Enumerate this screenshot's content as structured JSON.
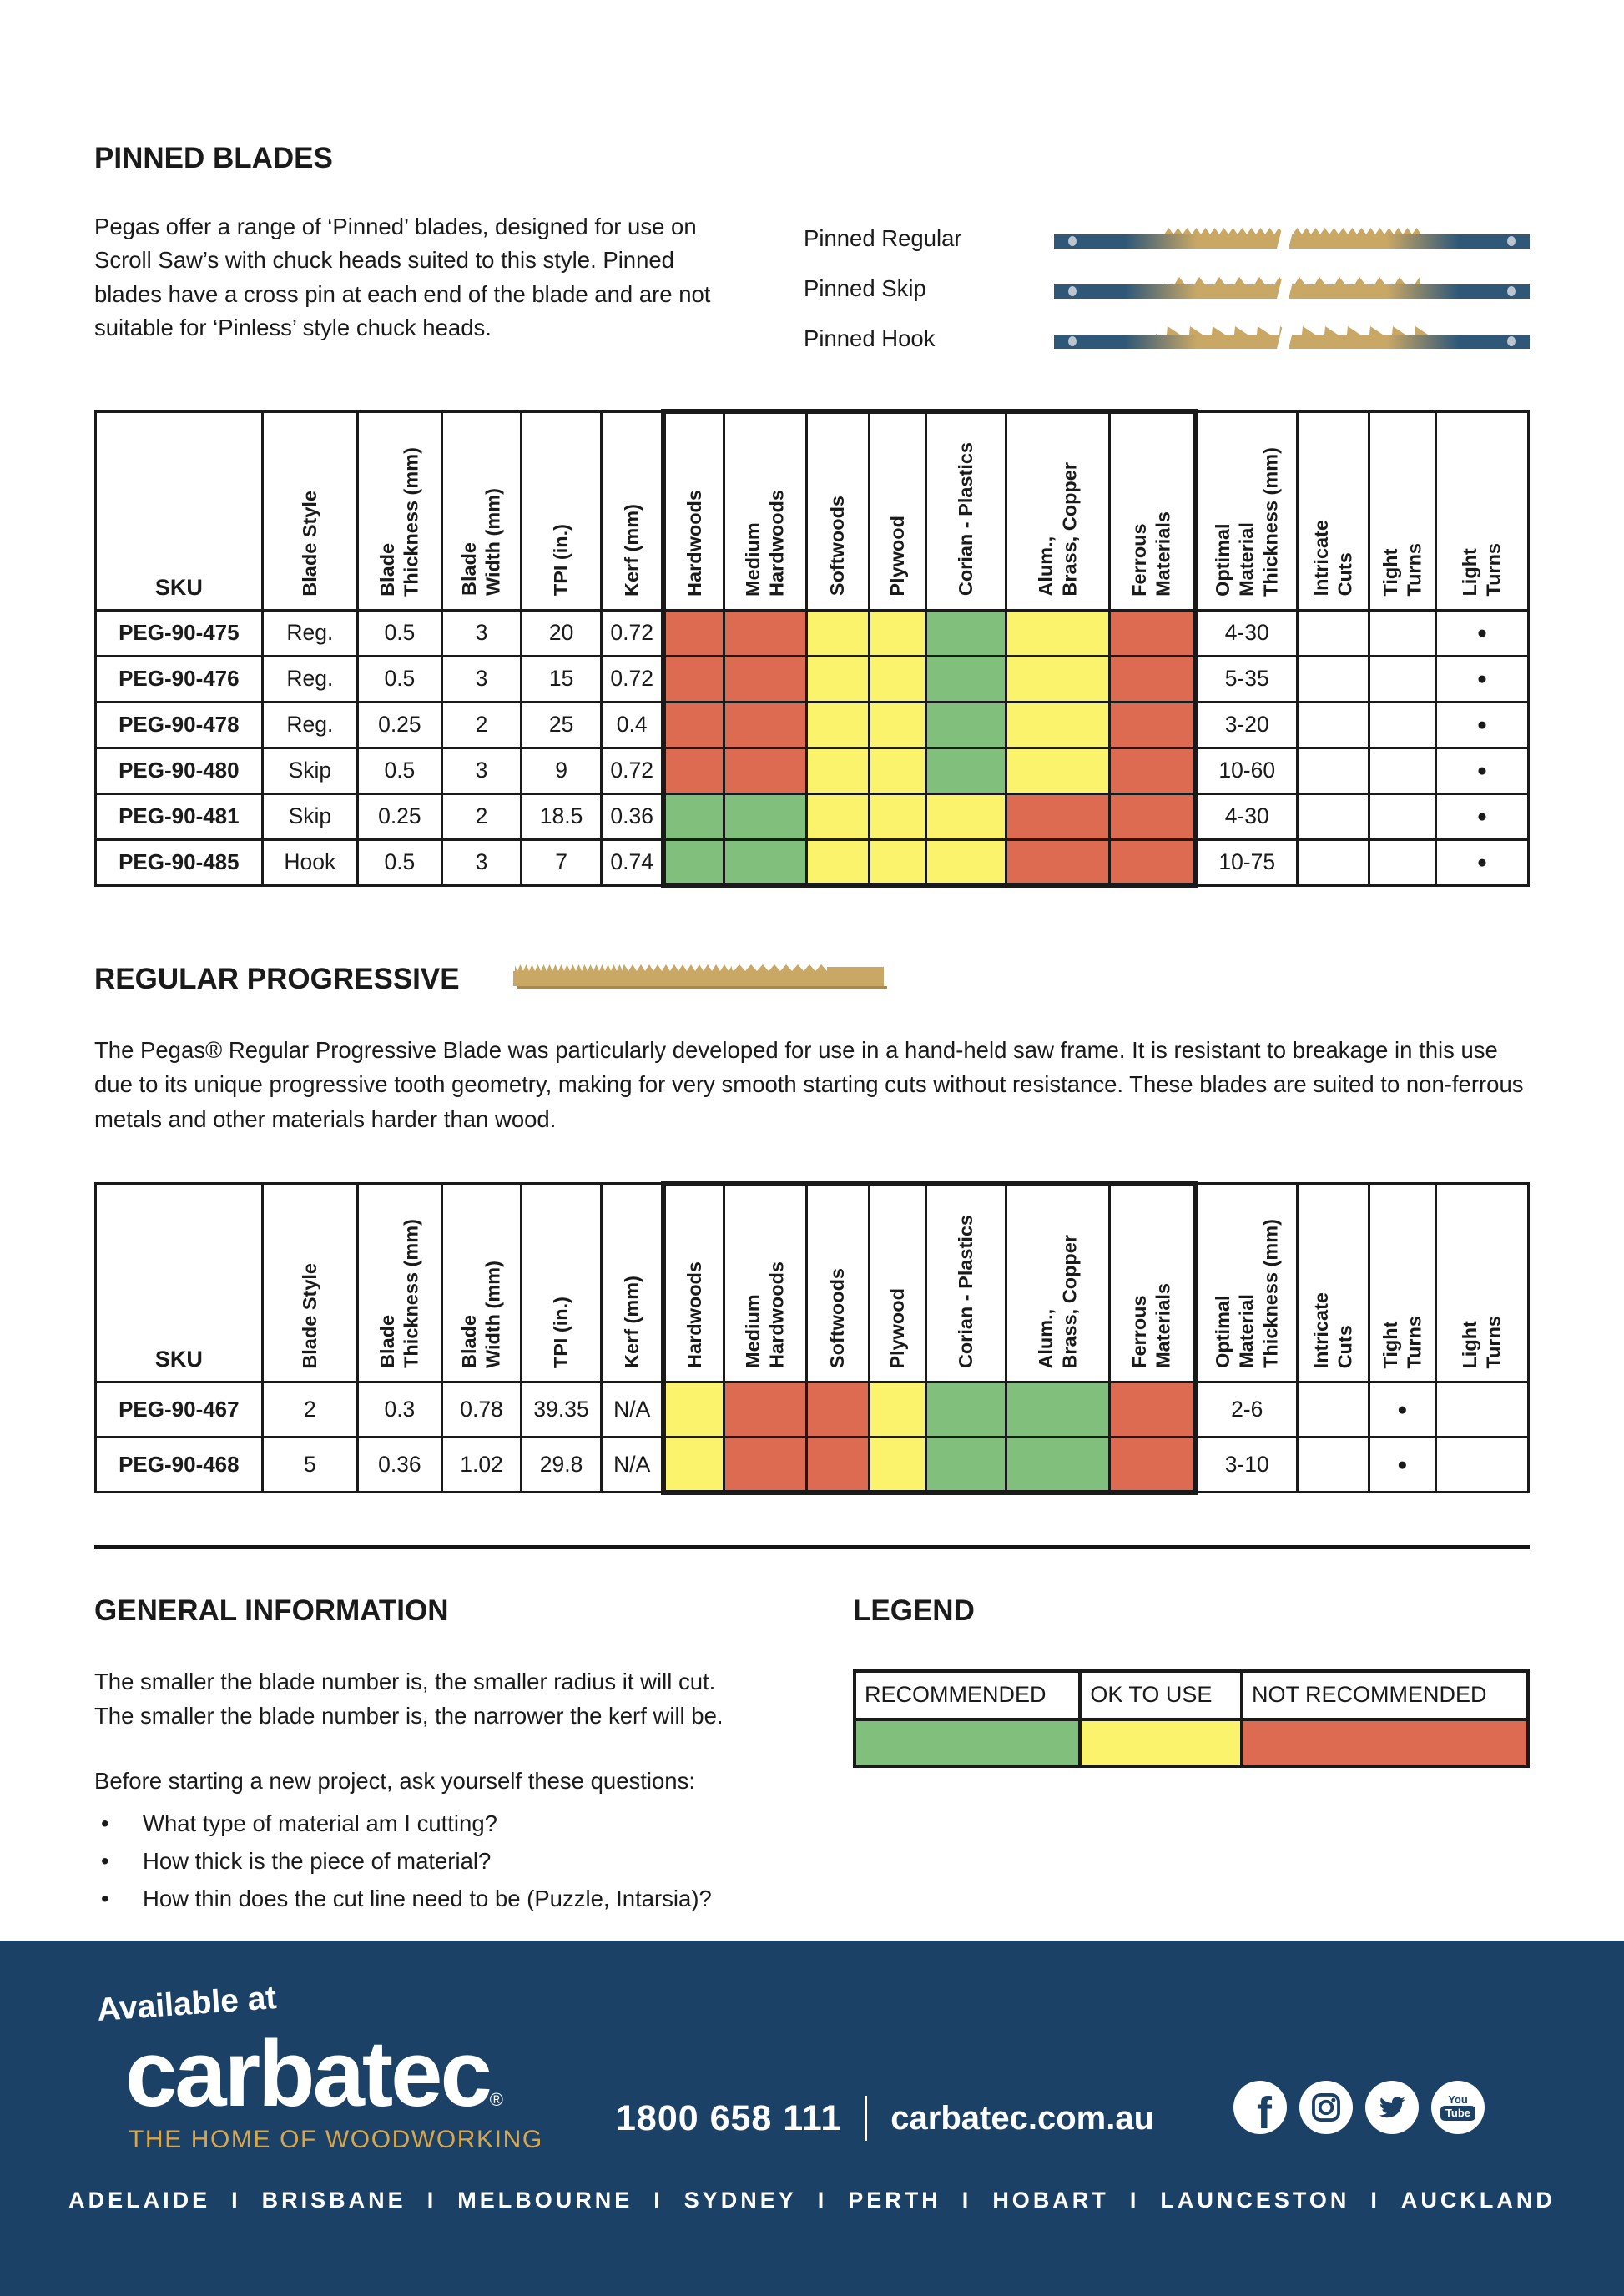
{
  "colors": {
    "table_border": "#1a1a1a",
    "footer_background": "#1b4166",
    "brand_gold": "#d9a74b",
    "blade_steel_blue": "#2f5878",
    "blade_tan": "#c9a765"
  },
  "pinned_section": {
    "title": "PINNED BLADES",
    "description": "Pegas offer a range of ‘Pinned’ blades, designed for use on Scroll Saw’s with chuck heads suited to this style. Pinned blades have a cross pin at each end of the blade and are not suitable for ‘Pinless’ style chuck heads.",
    "blade_types": [
      {
        "label": "Pinned Regular"
      },
      {
        "label": "Pinned Skip"
      },
      {
        "label": "Pinned Hook"
      }
    ]
  },
  "table": {
    "sku_label": "SKU",
    "columns": [
      "Blade Style",
      "Blade\nThickness (mm)",
      "Blade\nWidth (mm)",
      "TPI (in.)",
      "Kerf (mm)",
      "Hardwoods",
      "Medium\nHardwoods",
      "Softwoods",
      "Plywood",
      "Corian - Plastics",
      "Alum.,\nBrass, Copper",
      "Ferrous\nMaterials",
      "Optimal\nMaterial\nThickness (mm)",
      "Intricate\nCuts",
      "Tight\nTurns",
      "Light\nTurns"
    ]
  },
  "pinned_table": {
    "rows": [
      {
        "sku": "PEG-90-475",
        "blade_style": "Reg.",
        "thickness_mm": "0.5",
        "width_mm": "3",
        "tpi": "20",
        "kerf_mm": "0.72",
        "ratings": [
          "N",
          "N",
          "O",
          "O",
          "R",
          "O",
          "N"
        ],
        "optimal_thickness_mm": "4-30",
        "intricate_cuts": false,
        "tight_turns": false,
        "light_turns": true
      },
      {
        "sku": "PEG-90-476",
        "blade_style": "Reg.",
        "thickness_mm": "0.5",
        "width_mm": "3",
        "tpi": "15",
        "kerf_mm": "0.72",
        "ratings": [
          "N",
          "N",
          "O",
          "O",
          "R",
          "O",
          "N"
        ],
        "optimal_thickness_mm": "5-35",
        "intricate_cuts": false,
        "tight_turns": false,
        "light_turns": true
      },
      {
        "sku": "PEG-90-478",
        "blade_style": "Reg.",
        "thickness_mm": "0.25",
        "width_mm": "2",
        "tpi": "25",
        "kerf_mm": "0.4",
        "ratings": [
          "N",
          "N",
          "O",
          "O",
          "R",
          "O",
          "N"
        ],
        "optimal_thickness_mm": "3-20",
        "intricate_cuts": false,
        "tight_turns": false,
        "light_turns": true
      },
      {
        "sku": "PEG-90-480",
        "blade_style": "Skip",
        "thickness_mm": "0.5",
        "width_mm": "3",
        "tpi": "9",
        "kerf_mm": "0.72",
        "ratings": [
          "N",
          "N",
          "O",
          "O",
          "R",
          "O",
          "N"
        ],
        "optimal_thickness_mm": "10-60",
        "intricate_cuts": false,
        "tight_turns": false,
        "light_turns": true
      },
      {
        "sku": "PEG-90-481",
        "blade_style": "Skip",
        "thickness_mm": "0.25",
        "width_mm": "2",
        "tpi": "18.5",
        "kerf_mm": "0.36",
        "ratings": [
          "R",
          "R",
          "O",
          "O",
          "O",
          "N",
          "N"
        ],
        "optimal_thickness_mm": "4-30",
        "intricate_cuts": false,
        "tight_turns": false,
        "light_turns": true
      },
      {
        "sku": "PEG-90-485",
        "blade_style": "Hook",
        "thickness_mm": "0.5",
        "width_mm": "3",
        "tpi": "7",
        "kerf_mm": "0.74",
        "ratings": [
          "R",
          "R",
          "O",
          "O",
          "O",
          "N",
          "N"
        ],
        "optimal_thickness_mm": "10-75",
        "intricate_cuts": false,
        "tight_turns": false,
        "light_turns": true
      }
    ]
  },
  "progressive_section": {
    "title": "REGULAR PROGRESSIVE",
    "description": "The Pegas® Regular Progressive Blade was particularly developed for use in a hand-held saw frame. It is resistant to breakage in this use due to its unique progressive tooth geometry, making for very smooth starting cuts without resistance. These blades are suited to non-ferrous metals and other materials harder than wood."
  },
  "progressive_table": {
    "rows": [
      {
        "sku": "PEG-90-467",
        "blade_style": "2",
        "thickness_mm": "0.3",
        "width_mm": "0.78",
        "tpi": "39.35",
        "kerf_mm": "N/A",
        "ratings": [
          "O",
          "N",
          "N",
          "O",
          "R",
          "R",
          "N"
        ],
        "optimal_thickness_mm": "2-6",
        "intricate_cuts": false,
        "tight_turns": true,
        "light_turns": false
      },
      {
        "sku": "PEG-90-468",
        "blade_style": "5",
        "thickness_mm": "0.36",
        "width_mm": "1.02",
        "tpi": "29.8",
        "kerf_mm": "N/A",
        "ratings": [
          "O",
          "N",
          "N",
          "O",
          "R",
          "R",
          "N"
        ],
        "optimal_thickness_mm": "3-10",
        "intricate_cuts": false,
        "tight_turns": true,
        "light_turns": false
      }
    ]
  },
  "general_information": {
    "title": "GENERAL INFORMATION",
    "lines": [
      "The smaller the blade number is, the smaller radius it will cut.",
      "The smaller the blade number is, the narrower the kerf will be."
    ],
    "questions_intro": "Before starting a new project, ask yourself these questions:",
    "questions": [
      "What type of material am I cutting?",
      "How thick is the piece of material?",
      "How thin does the cut line need to be (Puzzle, Intarsia)?"
    ]
  },
  "legend": {
    "title": "LEGEND",
    "items": [
      {
        "label": "RECOMMENDED",
        "code": "R",
        "color": "#80bf7c"
      },
      {
        "label": "OK TO USE",
        "code": "O",
        "color": "#fbf36b"
      },
      {
        "label": "NOT RECOMMENDED",
        "code": "N",
        "color": "#dc6b52"
      }
    ]
  },
  "footer": {
    "available_at": "Available at",
    "brand": "carbatec",
    "registered_mark": "®",
    "tagline": "THE HOME OF WOODWORKING",
    "phone": "1800 658 111",
    "website": "carbatec.com.au",
    "social": [
      "facebook",
      "instagram",
      "twitter",
      "youtube"
    ],
    "cities": [
      "ADELAIDE",
      "BRISBANE",
      "MELBOURNE",
      "SYDNEY",
      "PERTH",
      "HOBART",
      "LAUNCESTON",
      "AUCKLAND"
    ]
  }
}
